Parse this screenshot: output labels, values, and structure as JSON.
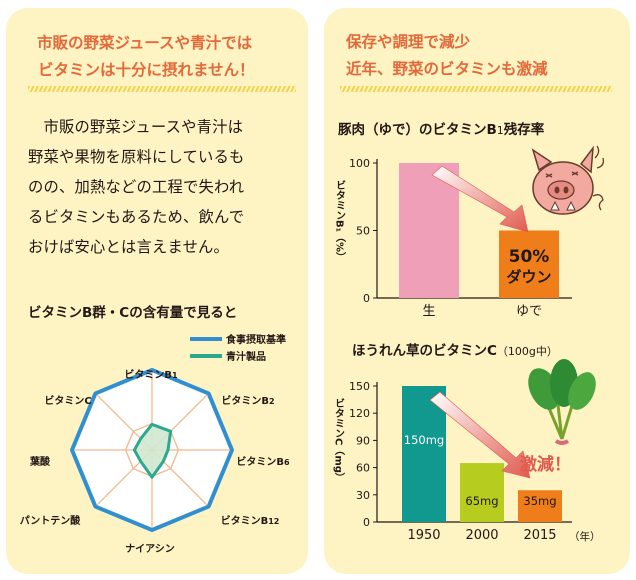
{
  "left": {
    "heading": [
      "市販の野菜ジュースや青汁では",
      "ビタミンは十分に摂れません！"
    ],
    "body": "　市販の野菜ジュースや青汁は\n野菜や果物を原料にしているも\nのの、加熱などの工程で失われ\nるビタミンもあるため、飲んで\nおけば安心とは言えません。",
    "radar_title": "ビタミンB群・Cの含有量で見ると",
    "legend": [
      "食事摂取基準",
      "青汁製品"
    ]
  },
  "right": {
    "heading": [
      "保存や調理で減少",
      "近年、野菜のビタミンも激減"
    ],
    "chart1_title_main": "豚肉（ゆで）のビタミンB",
    "chart1_title_sub": "1",
    "chart1_title_end": "残存率",
    "chart1_ylabel": "ビタミンB₁（%）",
    "chart1_annotation": [
      "50%",
      "ダウン"
    ],
    "chart2_title": "ほうれん草のビタミンC",
    "chart2_title_note": "（100g中）",
    "chart2_ylabel": "ビタミンC（mg）",
    "chart2_annotation": "激減！",
    "chart2_unit": "（年）"
  },
  "colors": {
    "heading": "#e3693a",
    "panel": "#fdf3c3",
    "radar_standard": "#2f8fd0",
    "radar_product": "#2aa98f",
    "bar_pink": "#ef9fb8",
    "bar_orange": "#ee7d1a",
    "bar_teal": "#11988f",
    "bar_green": "#b6cc1f",
    "accent_red": "#e05a4f"
  },
  "icons": [
    "pig-icon",
    "spinach-icon"
  ],
  "chart_data": [
    {
      "type": "radar",
      "axes": [
        "ビタミンB1",
        "ビタミンB2",
        "ビタミンB6",
        "ビタミンB12",
        "ナイアシン",
        "パントテン酸",
        "葉酸",
        "ビタミンC"
      ],
      "series": [
        {
          "name": "食事摂取基準",
          "values": [
            100,
            100,
            100,
            100,
            100,
            100,
            100,
            100
          ]
        },
        {
          "name": "青汁製品",
          "values": [
            32,
            33,
            20,
            20,
            34,
            20,
            22,
            20
          ]
        }
      ]
    },
    {
      "type": "bar",
      "title": "豚肉（ゆで）のビタミンB1残存率",
      "categories": [
        "生",
        "ゆで"
      ],
      "values": [
        100,
        50
      ],
      "ylim": [
        0,
        100
      ],
      "yticks": [
        0,
        50,
        100
      ]
    },
    {
      "type": "bar",
      "title": "ほうれん草のビタミンC（100g中）",
      "categories": [
        "1950",
        "2000",
        "2015"
      ],
      "values": [
        150,
        65,
        35
      ],
      "labels": [
        "150mg",
        "65mg",
        "35mg"
      ],
      "ylim": [
        0,
        150
      ],
      "yticks": [
        0,
        30,
        60,
        90,
        120,
        150
      ]
    }
  ]
}
